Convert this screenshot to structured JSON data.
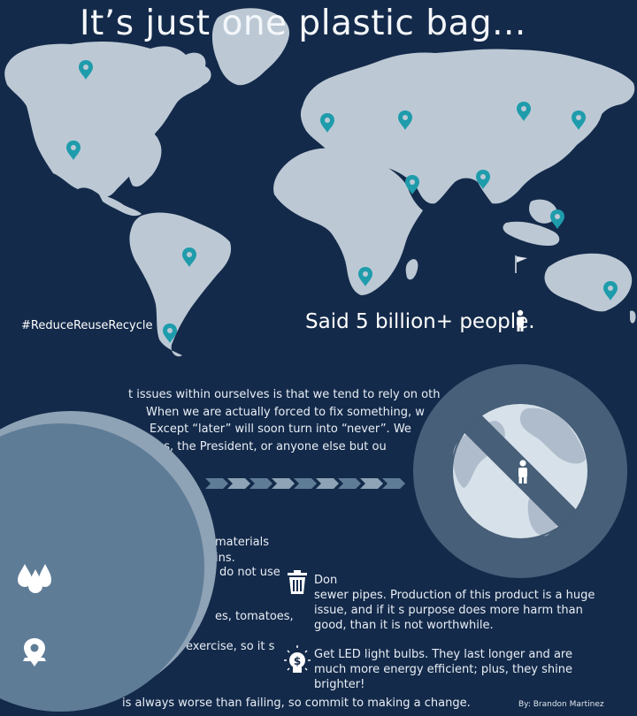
{
  "title": "It’s just one plastic bag...",
  "hashtag": "#ReduceReuseRecycle",
  "said_text": "Said 5 billion+ people.",
  "intro_lines": [
    "t issues within ourselves is that we tend to rely on oth",
    "When we are actually forced to fix something, w",
    "Except “later” will soon turn into “never”. We",
    "ons, the President, or anyone else but ou"
  ],
  "left_fragments": [
    "materials",
    "ins.",
    "do not use",
    "es, tomatoes,",
    "exercise, so it s"
  ],
  "tip_trash_lines": [
    "Don",
    "sewer pipes. Production of this product is a huge",
    "issue, and if it s purpose does more harm than",
    "good, than it is not worthwhile."
  ],
  "tip_bulb_lines": [
    "Get LED light bulbs. They last longer and are",
    "much more energy efficient; plus, they shine",
    "brighter!"
  ],
  "closing": "is always worse than failing, so commit to making a change.",
  "byline": "By: Brandon Martinez",
  "colors": {
    "background": "#142a4a",
    "continents": "#bcc9d5",
    "pin": "#1f9cab",
    "big_circle_ring": "#8fa3b6",
    "big_circle_fill": "#5f7c97",
    "no_sign": "#475f78",
    "globe": "#d7e1ea"
  },
  "icons": [
    "map-pin-icon",
    "flag-icon",
    "person-icon",
    "water-drops-icon",
    "location-pin-icon",
    "trash-icon",
    "light-bulb-icon",
    "no-sign-icon",
    "globe-icon"
  ]
}
